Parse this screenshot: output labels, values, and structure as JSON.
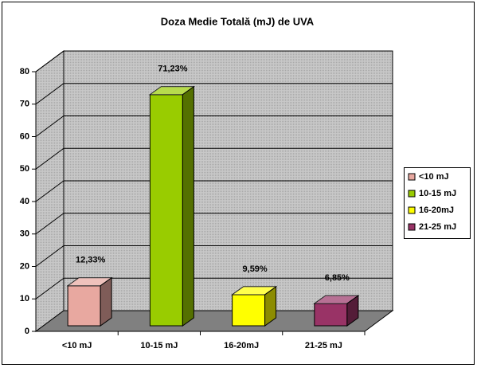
{
  "chart_data": {
    "type": "bar3d",
    "title": "Doza Medie Totală (mJ) de UVA",
    "categories": [
      "<10 mJ",
      "10-15 mJ",
      "16-20mJ",
      "21-25 mJ"
    ],
    "values": [
      12.33,
      71.23,
      9.59,
      6.85
    ],
    "value_labels": [
      "12,33%",
      "71,23%",
      "9,59%",
      "6,85%"
    ],
    "colors": [
      "#e8a8a0",
      "#99cc00",
      "#ffff00",
      "#993366"
    ],
    "ylim": [
      0,
      80
    ],
    "yticks": [
      0,
      10,
      20,
      30,
      40,
      50,
      60,
      70,
      80
    ],
    "grid": true,
    "legend": "right"
  }
}
